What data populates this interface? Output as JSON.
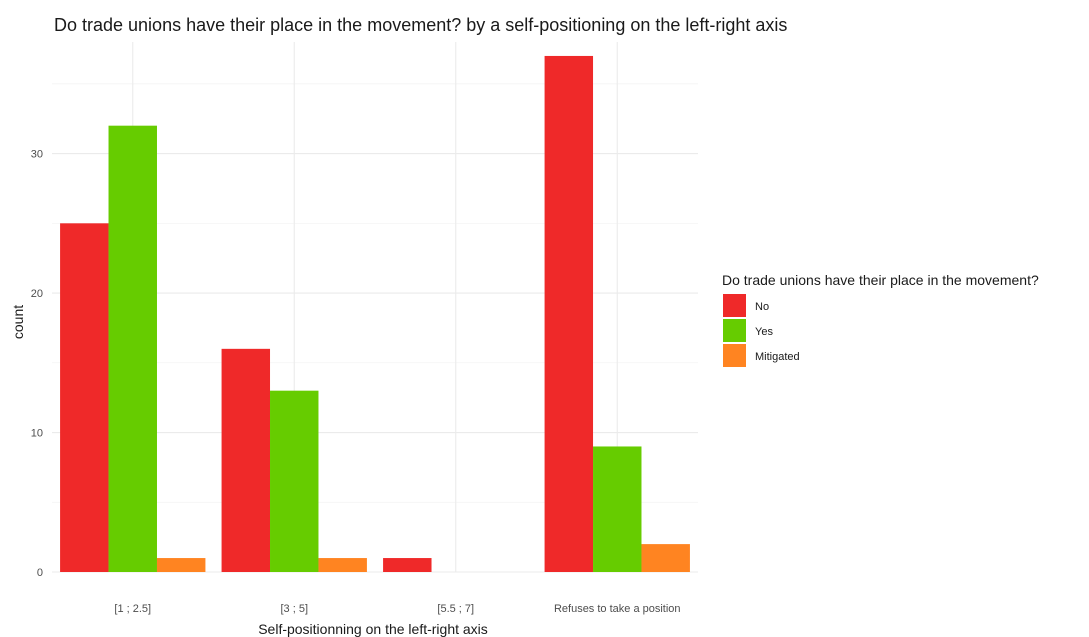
{
  "colors": {
    "No": "#ef2929",
    "Yes": "#66cc00",
    "Mitigated": "#ff8421",
    "grid": "#ebebeb"
  },
  "chart_data": {
    "type": "bar",
    "title": "Do trade unions have their place in the movement? by a self-positioning on the left-right axis",
    "xlabel": "Self-positionning on the left-right axis",
    "ylabel": "count",
    "categories": [
      "[1 ; 2.5]",
      "[3 ; 5]",
      "[5.5 ; 7]",
      "Refuses to take a position"
    ],
    "series": [
      {
        "name": "No",
        "values": [
          25,
          16,
          1,
          37
        ]
      },
      {
        "name": "Yes",
        "values": [
          32,
          13,
          0,
          9
        ]
      },
      {
        "name": "Mitigated",
        "values": [
          1,
          1,
          0,
          2
        ]
      }
    ],
    "ylim": [
      0,
      38
    ],
    "yticks": [
      0,
      10,
      20,
      30
    ],
    "grid": true,
    "legend": {
      "title": "Do trade unions have their place in the movement?",
      "position": "right"
    }
  }
}
